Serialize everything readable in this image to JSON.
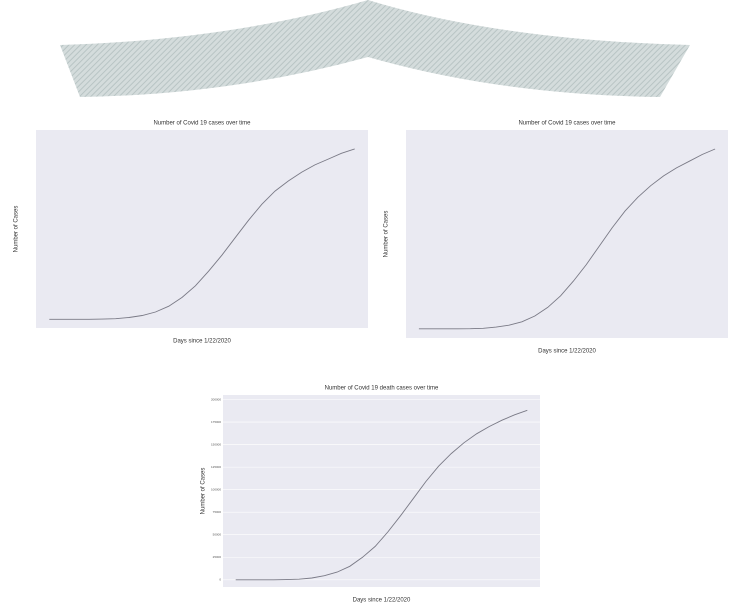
{
  "chart_data": [
    {
      "type": "line",
      "title": "Number of Covid 19 cases over time",
      "x_label": "Days since 1/22/2020",
      "y_label": "Number of Cases",
      "x": [
        0,
        10,
        20,
        30,
        40,
        50,
        60,
        70,
        80,
        90,
        100,
        110,
        120,
        130,
        140,
        150,
        160,
        170,
        180,
        190,
        200,
        210,
        220,
        230
      ],
      "xlim": [
        -10,
        240
      ],
      "ylim": [
        -300000,
        6500000
      ],
      "series": [
        {
          "color": "#7a7a86",
          "values": [
            0,
            0,
            0,
            0,
            5000,
            20000,
            60000,
            130000,
            250000,
            450000,
            750000,
            1150000,
            1650000,
            2200000,
            2800000,
            3400000,
            3950000,
            4400000,
            4750000,
            5050000,
            5300000,
            5500000,
            5700000,
            5850000
          ]
        }
      ]
    },
    {
      "type": "line",
      "title": "Number of Covid 19 cases over time",
      "x_label": "Days since 1/22/2020",
      "y_label": "Number of Cases",
      "x": [
        0,
        10,
        20,
        30,
        40,
        50,
        60,
        70,
        80,
        90,
        100,
        110,
        120,
        130,
        140,
        150,
        160,
        170,
        180,
        190,
        200,
        210,
        220,
        230
      ],
      "xlim": [
        -10,
        240
      ],
      "ylim": [
        -300000,
        6500000
      ],
      "series": [
        {
          "color": "#7a7a86",
          "values": [
            0,
            0,
            0,
            0,
            4000,
            18000,
            55000,
            120000,
            230000,
            420000,
            700000,
            1080000,
            1560000,
            2100000,
            2700000,
            3300000,
            3850000,
            4300000,
            4680000,
            5000000,
            5260000,
            5480000,
            5700000,
            5880000
          ]
        }
      ]
    },
    {
      "type": "line",
      "title": "Number of Covid 19 death cases over time",
      "x_label": "Days since 1/22/2020",
      "y_label": "Number of Cases",
      "x": [
        0,
        10,
        20,
        30,
        40,
        50,
        60,
        70,
        80,
        90,
        100,
        110,
        120,
        130,
        140,
        150,
        160,
        170,
        180,
        190,
        200,
        210,
        220,
        230
      ],
      "xlim": [
        -10,
        240
      ],
      "ylim": [
        -8000,
        205000
      ],
      "yticks": [
        0,
        25000,
        50000,
        75000,
        100000,
        125000,
        150000,
        175000,
        200000
      ],
      "series": [
        {
          "color": "#7a7a86",
          "values": [
            0,
            0,
            0,
            0,
            200,
            700,
            2000,
            4500,
            8500,
            15000,
            25000,
            37000,
            53000,
            71000,
            90000,
            109000,
            126000,
            140000,
            152000,
            162000,
            170000,
            177000,
            183000,
            188000
          ]
        }
      ]
    }
  ]
}
